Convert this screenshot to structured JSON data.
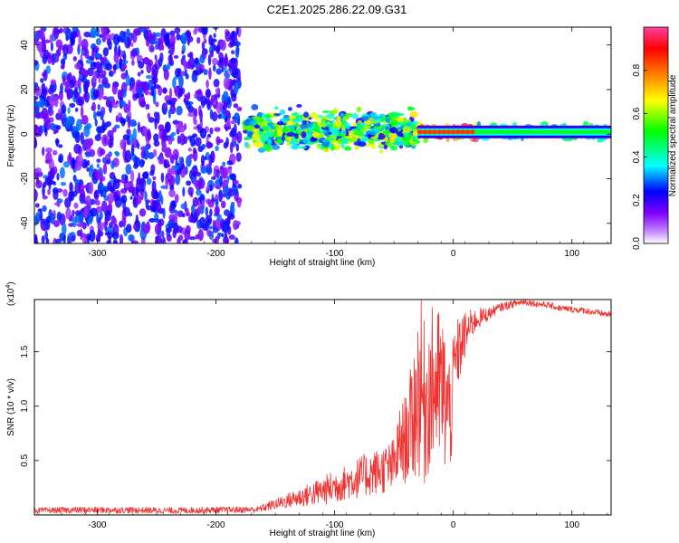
{
  "figure_title": "C2E1.2025.286.22.09.G31",
  "chart_data": [
    {
      "type": "heatmap",
      "title": "C2E1.2025.286.22.09.G31",
      "xlabel": "Height of straight line (km)",
      "ylabel": "Frequency (Hz)",
      "xlim": [
        -353,
        133
      ],
      "ylim": [
        -49,
        48
      ],
      "x_ticks": [
        -300,
        -200,
        -100,
        0,
        100
      ],
      "x_tick_labels": [
        "-300",
        "-200",
        "-100",
        "0",
        "100"
      ],
      "y_ticks": [
        -40,
        -20,
        0,
        20,
        40
      ],
      "y_tick_labels": [
        "-40",
        "-20",
        "0",
        "20",
        "40"
      ],
      "colorbar": {
        "label": "Normalized spectral amplitude",
        "range": [
          0,
          1
        ],
        "ticks": [
          0.0,
          0.2,
          0.4,
          0.6,
          0.8
        ],
        "tick_labels": [
          "0.0",
          "0.2",
          "0.4",
          "0.6",
          "0.8"
        ],
        "colors": [
          "#ffffff",
          "#c080ff",
          "#8000ff",
          "#0000ff",
          "#00ffff",
          "#00ff00",
          "#ffff00",
          "#ff8000",
          "#ff0000",
          "#ff40a0"
        ]
      },
      "description_regions": [
        {
          "x_range": [
            -353,
            -180
          ],
          "y_range": [
            -49,
            48
          ],
          "amplitude": [
            0.1,
            0.3
          ],
          "pattern": "broadband noise"
        },
        {
          "x_range": [
            -175,
            -30
          ],
          "y_center": 2,
          "y_spread": 8,
          "amplitude": [
            0.2,
            0.7
          ],
          "pattern": "scattered signal"
        },
        {
          "x_range": [
            -30,
            20
          ],
          "y_center": 1,
          "y_spread": 3,
          "amplitude": [
            0.5,
            1.0
          ],
          "pattern": "peak line"
        },
        {
          "x_range": [
            20,
            133
          ],
          "y_center": 1,
          "y_spread": 3,
          "amplitude": [
            0.3,
            0.5
          ],
          "pattern": "steady line"
        }
      ]
    },
    {
      "type": "line",
      "xlabel": "Height of straight line (km)",
      "ylabel": "SNR (10 * v/v)",
      "multiplier_label": "(x10",
      "multiplier_exp": "4",
      "multiplier_close": ")",
      "xlim": [
        -353,
        133
      ],
      "ylim": [
        0,
        19.8
      ],
      "x_ticks": [
        -300,
        -200,
        -100,
        0,
        100
      ],
      "x_tick_labels": [
        "-300",
        "-200",
        "-100",
        "0",
        "100"
      ],
      "y_ticks": [
        5,
        10,
        15
      ],
      "y_tick_labels": [
        "0.5",
        "1.0",
        "1.5"
      ],
      "series": [
        {
          "name": "SNR",
          "color": "#ee3333",
          "x": [
            -353,
            -320,
            -280,
            -240,
            -200,
            -165,
            -150,
            -130,
            -110,
            -100,
            -90,
            -80,
            -70,
            -60,
            -50,
            -45,
            -40,
            -35,
            -30,
            -28,
            -25,
            -20,
            -15,
            -10,
            -5,
            -2,
            0,
            3,
            6,
            10,
            15,
            20,
            30,
            40,
            50,
            60,
            70,
            80,
            90,
            100,
            110,
            120,
            133
          ],
          "y": [
            0.4,
            0.45,
            0.45,
            0.4,
            0.45,
            0.5,
            1.0,
            1.6,
            2.2,
            2.6,
            3.0,
            3.4,
            3.8,
            4.1,
            4.5,
            6.5,
            7.0,
            8.5,
            11.0,
            12.5,
            10.0,
            11.5,
            12.0,
            11.5,
            10.0,
            9.0,
            13.0,
            14.5,
            15.5,
            16.5,
            17.5,
            18.0,
            18.5,
            19.1,
            19.4,
            19.6,
            19.4,
            19.3,
            19.0,
            18.9,
            18.8,
            18.6,
            18.4
          ],
          "spread": [
            0.25,
            0.3,
            0.3,
            0.3,
            0.3,
            0.3,
            0.5,
            0.9,
            1.3,
            1.6,
            1.6,
            1.9,
            2.1,
            2.2,
            2.6,
            3.4,
            4.2,
            5.5,
            8.0,
            9.0,
            8.0,
            7.5,
            7.5,
            7.5,
            6.5,
            5.0,
            3.5,
            3.5,
            3.0,
            2.2,
            1.4,
            1.0,
            0.6,
            0.4,
            0.35,
            0.3,
            0.3,
            0.3,
            0.3,
            0.3,
            0.3,
            0.3,
            0.3
          ]
        }
      ]
    }
  ]
}
